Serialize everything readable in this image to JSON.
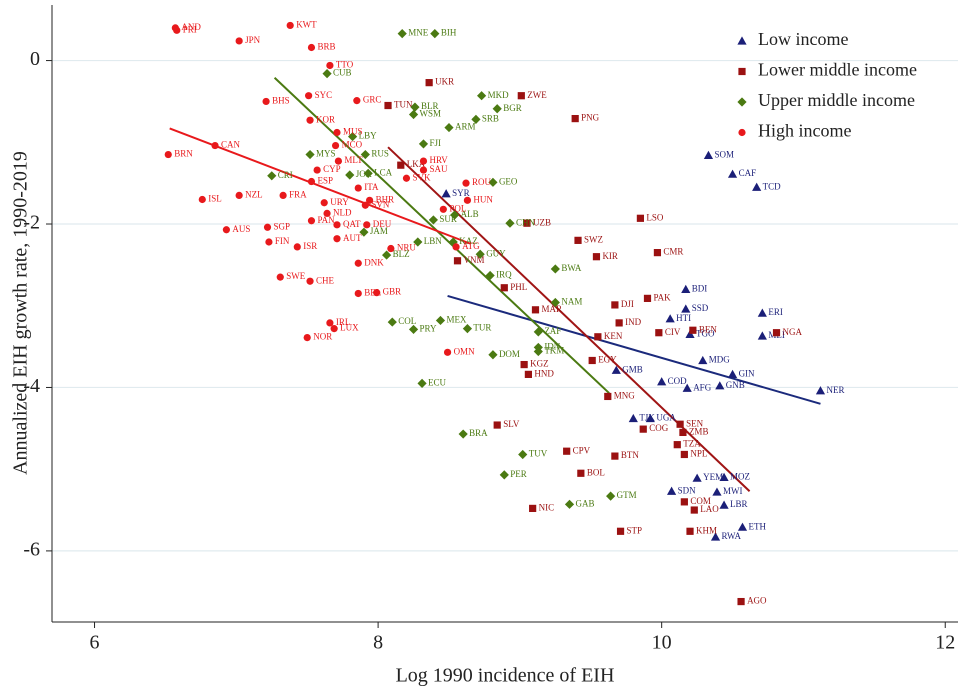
{
  "chart_data": {
    "type": "scatter",
    "x_label": "Log 1990 incidence of EIH",
    "y_label": "Annualized EIH growth rate, 1990-2019",
    "xlim": [
      5.7,
      12.09
    ],
    "ylim": [
      -6.87,
      0.68
    ],
    "xticks": [
      6,
      8,
      10,
      12
    ],
    "yticks": [
      0,
      -2,
      -4,
      -6
    ],
    "grid": true,
    "legend": "upper right",
    "series": [
      {
        "name": "Low income",
        "color": "#1b1f78",
        "marker": "triangle",
        "x": [
          10.33,
          10.5,
          10.67,
          10.17,
          10.17,
          10.71,
          10.06,
          10.2,
          10.71,
          10.29,
          10.5,
          9.68,
          10.0,
          10.18,
          10.41,
          11.12,
          9.8,
          9.92,
          10.25,
          10.44,
          10.07,
          10.39,
          10.44,
          10.57,
          10.38,
          8.48
        ],
        "values": [
          -1.16,
          -1.39,
          -1.55,
          -2.8,
          -3.04,
          -3.09,
          -3.16,
          -3.35,
          -3.37,
          -3.67,
          -3.84,
          -3.79,
          -3.93,
          -4.01,
          -3.98,
          -4.04,
          -4.38,
          -4.38,
          -5.11,
          -5.1,
          -5.27,
          -5.28,
          -5.44,
          -5.71,
          -5.83,
          -1.63
        ],
        "labels": [
          "SOM",
          "CAF",
          "TCD",
          "BDI",
          "SSD",
          "ERI",
          "HTI",
          "TGO",
          "MLI",
          "MDG",
          "GIN",
          "GMB",
          "COD",
          "AFG",
          "GNB",
          "NER",
          "TJK",
          "UGA",
          "YEM",
          "MOZ",
          "SDN",
          "MWI",
          "LBR",
          "ETH",
          "RWA",
          "SYR"
        ]
      },
      {
        "name": "Lower middle income",
        "color": "#9b1111",
        "marker": "square",
        "x": [
          8.36,
          9.01,
          8.07,
          9.39,
          8.16,
          9.85,
          9.05,
          9.41,
          8.56,
          9.97,
          9.54,
          8.89,
          9.9,
          9.67,
          9.11,
          9.7,
          9.55,
          9.98,
          10.22,
          10.81,
          9.51,
          9.03,
          9.06,
          9.62,
          8.84,
          10.13,
          9.87,
          10.15,
          10.11,
          9.33,
          10.16,
          9.67,
          9.43,
          10.16,
          10.23,
          9.09,
          9.71,
          10.2,
          10.56
        ],
        "values": [
          -0.27,
          -0.43,
          -0.55,
          -0.71,
          -1.28,
          -1.93,
          -1.99,
          -2.2,
          -2.45,
          -2.35,
          -2.4,
          -2.78,
          -2.91,
          -2.99,
          -3.05,
          -3.21,
          -3.38,
          -3.33,
          -3.3,
          -3.33,
          -3.67,
          -3.72,
          -3.84,
          -4.11,
          -4.46,
          -4.45,
          -4.51,
          -4.55,
          -4.7,
          -4.78,
          -4.82,
          -4.84,
          -5.05,
          -5.4,
          -5.5,
          -5.48,
          -5.76,
          -5.76,
          -6.62
        ],
        "labels": [
          "UKR",
          "ZWE",
          "TUN",
          "PNG",
          "LKA",
          "LSO",
          "UZB",
          "SWZ",
          "VNM",
          "CMR",
          "KIR",
          "PHL",
          "PAK",
          "DJI",
          "MAR",
          "IND",
          "KEN",
          "CIV",
          "BEN",
          "NGA",
          "EGY",
          "KGZ",
          "HND",
          "MNG",
          "SLV",
          "SEN",
          "COG",
          "ZMB",
          "TZA",
          "CPV",
          "NPL",
          "BTN",
          "BOL",
          "COM",
          "LAO",
          "NIC",
          "STP",
          "KHM",
          "AGO"
        ]
      },
      {
        "name": "Upper middle income",
        "color": "#4b7a12",
        "marker": "diamond",
        "x": [
          8.17,
          8.4,
          7.64,
          8.73,
          8.84,
          8.26,
          8.25,
          8.69,
          8.5,
          7.82,
          8.32,
          7.52,
          7.91,
          7.25,
          7.8,
          7.93,
          8.81,
          8.54,
          8.93,
          8.39,
          7.9,
          8.28,
          8.53,
          8.72,
          9.25,
          8.79,
          8.06,
          9.25,
          8.1,
          8.44,
          8.25,
          8.63,
          9.13,
          9.13,
          9.13,
          8.81,
          8.31,
          8.6,
          9.02,
          8.89,
          9.64,
          9.35
        ],
        "values": [
          0.33,
          0.33,
          -0.16,
          -0.43,
          -0.59,
          -0.57,
          -0.66,
          -0.72,
          -0.82,
          -0.93,
          -1.02,
          -1.15,
          -1.15,
          -1.41,
          -1.4,
          -1.38,
          -1.49,
          -1.89,
          -1.99,
          -1.95,
          -2.1,
          -2.22,
          -2.22,
          -2.37,
          -2.55,
          -2.63,
          -2.38,
          -2.96,
          -3.2,
          -3.18,
          -3.29,
          -3.28,
          -3.32,
          -3.51,
          -3.56,
          -3.6,
          -3.95,
          -4.57,
          -4.82,
          -5.07,
          -5.33,
          -5.43
        ],
        "labels": [
          "MNE",
          "BIH",
          "CUB",
          "MKD",
          "BGR",
          "BLR",
          "WSM",
          "SRB",
          "ARM",
          "LBY",
          "FJI",
          "MYS",
          "RUS",
          "CRI",
          "JOR",
          "LCA",
          "GEO",
          "ALB",
          "CHN",
          "SUR",
          "JAM",
          "LBN",
          "KAZ",
          "GUY",
          "BWA",
          "IRQ",
          "BLZ",
          "NAM",
          "COL",
          "MEX",
          "PRY",
          "TUR",
          "ZAF",
          "IDN",
          "TKM",
          "DOM",
          "ECU",
          "BRA",
          "TUV",
          "PER",
          "GTM",
          "GAB"
        ]
      },
      {
        "name": "High income",
        "color": "#e8191c",
        "marker": "circle",
        "x": [
          6.57,
          6.58,
          7.38,
          7.02,
          7.53,
          7.66,
          7.51,
          7.85,
          7.21,
          7.52,
          7.72,
          7.71,
          7.7,
          6.85,
          6.52,
          8.32,
          8.32,
          8.2,
          7.57,
          7.53,
          8.62,
          7.86,
          7.33,
          7.02,
          6.76,
          7.94,
          8.63,
          7.62,
          8.46,
          7.91,
          7.64,
          7.53,
          7.71,
          7.22,
          6.93,
          7.92,
          7.71,
          7.23,
          7.43,
          8.09,
          8.55,
          7.86,
          7.31,
          7.52,
          7.86,
          7.99,
          7.66,
          7.69,
          7.5,
          8.49
        ],
        "values": [
          0.4,
          0.37,
          0.43,
          0.24,
          0.16,
          -0.06,
          -0.43,
          -0.49,
          -0.5,
          -0.73,
          -1.23,
          -0.88,
          -1.04,
          -1.04,
          -1.15,
          -1.23,
          -1.34,
          -1.44,
          -1.34,
          -1.48,
          -1.5,
          -1.56,
          -1.65,
          -1.65,
          -1.7,
          -1.71,
          -1.71,
          -1.74,
          -1.82,
          -1.77,
          -1.87,
          -1.96,
          -2.01,
          -2.04,
          -2.07,
          -2.01,
          -2.18,
          -2.22,
          -2.28,
          -2.3,
          -2.28,
          -2.48,
          -2.65,
          -2.7,
          -2.85,
          -2.84,
          -3.21,
          -3.28,
          -3.39,
          -3.57
        ],
        "labels": [
          "AND",
          "PRI",
          "KWT",
          "JPN",
          "BRB",
          "TTO",
          "SYC",
          "GRC",
          "BHS",
          "KOR",
          "MLT",
          "MUS",
          "MCO",
          "CAN",
          "BRN",
          "HRV",
          "SAU",
          "SVK",
          "CYP",
          "ESP",
          "ROU",
          "ITA",
          "FRA",
          "NZL",
          "ISL",
          "BHR",
          "HUN",
          "URY",
          "POL",
          "SVN",
          "NLD",
          "PAN",
          "QAT",
          "SGP",
          "AUS",
          "DEU",
          "AUT",
          "FIN",
          "ISR",
          "NRU",
          "ATG",
          "DNK",
          "SWE",
          "CHE",
          "BEL",
          "GBR",
          "IRL",
          "LUX",
          "NOR",
          "OMN"
        ]
      }
    ],
    "fits": [
      {
        "color": "#1b2a7c",
        "x": [
          8.49,
          11.12
        ],
        "values": [
          -2.88,
          -4.2
        ]
      },
      {
        "color": "#a01515",
        "x": [
          8.07,
          10.62
        ],
        "values": [
          -1.06,
          -5.27
        ]
      },
      {
        "color": "#4b7a12",
        "x": [
          7.27,
          9.63
        ],
        "values": [
          -0.21,
          -4.07
        ]
      },
      {
        "color": "#e8191c",
        "x": [
          6.53,
          8.65
        ],
        "values": [
          -0.83,
          -2.24
        ]
      }
    ]
  }
}
